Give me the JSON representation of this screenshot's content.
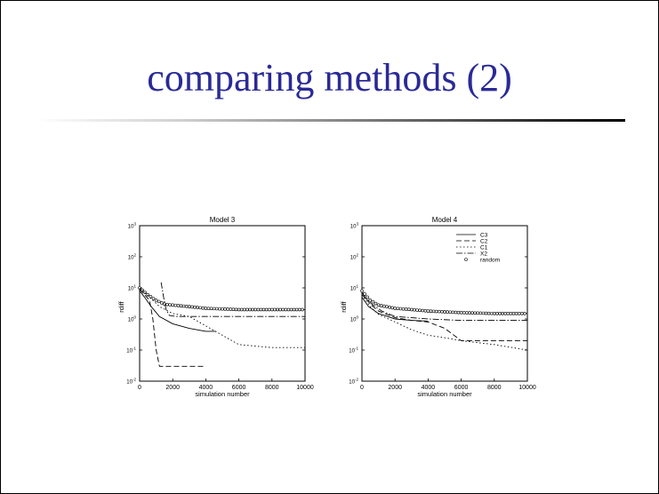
{
  "slide": {
    "title": "comparing methods (2)"
  },
  "colors": {
    "title": "#2a2a96",
    "ink": "#000000"
  },
  "chart_data": [
    {
      "type": "line",
      "title": "Model 3",
      "xlabel": "simulation number",
      "ylabel": "rdiff",
      "xlim": [
        0,
        10000
      ],
      "ylim_log10": [
        -2,
        3
      ],
      "y_scale": "log",
      "x_ticks": [
        0,
        2000,
        4000,
        6000,
        8000,
        10000
      ],
      "x_tick_labels": [
        "0",
        "2000",
        "4000",
        "6000",
        "8000",
        "10000"
      ],
      "y_tick_labels": [
        "10^-2",
        "10^-1",
        "10^0",
        "10^1",
        "10^2",
        "10^3"
      ],
      "series": [
        {
          "style": "circles",
          "x": [
            0,
            500,
            1000,
            1500,
            2000,
            3000,
            4000,
            6000,
            8000,
            10000
          ],
          "y": [
            10,
            6,
            4,
            3,
            2.8,
            2.5,
            2.2,
            2.0,
            2.0,
            2.0
          ]
        },
        {
          "style": "solid",
          "x": [
            0,
            300,
            700,
            1200,
            2000,
            3000,
            4000,
            4600
          ],
          "y": [
            8,
            5,
            2.5,
            1.2,
            0.7,
            0.5,
            0.4,
            0.4
          ]
        },
        {
          "style": "dashed",
          "x": [
            0,
            300,
            600,
            800,
            1000,
            1200,
            2000,
            3000,
            4000
          ],
          "y": [
            9,
            6,
            4,
            1.0,
            0.1,
            0.03,
            0.03,
            0.03,
            0.03
          ]
        },
        {
          "style": "dashdot",
          "x": [
            1300,
            1450,
            1600,
            1800,
            2200,
            4000,
            6000,
            8000,
            10000
          ],
          "y": [
            15,
            5,
            2,
            1.3,
            1.2,
            1.2,
            1.2,
            1.2,
            1.2
          ]
        },
        {
          "style": "dotted",
          "x": [
            0,
            600,
            1200,
            2000,
            3000,
            4000,
            6000,
            8000,
            10000
          ],
          "y": [
            10,
            5,
            2.5,
            1.5,
            1.2,
            0.6,
            0.15,
            0.12,
            0.12
          ]
        }
      ]
    },
    {
      "type": "line",
      "title": "Model 4",
      "xlabel": "simulation number",
      "ylabel": "rdiff",
      "xlim": [
        0,
        10000
      ],
      "ylim_log10": [
        -2,
        3
      ],
      "y_scale": "log",
      "x_ticks": [
        0,
        2000,
        4000,
        6000,
        8000,
        10000
      ],
      "x_tick_labels": [
        "0",
        "2000",
        "4000",
        "6000",
        "8000",
        "10000"
      ],
      "y_tick_labels": [
        "10^-2",
        "10^-1",
        "10^0",
        "10^1",
        "10^2",
        "10^3"
      ],
      "legend": {
        "placement": "top-right",
        "entries": [
          "C3",
          "C2",
          "C1",
          "X2",
          "random"
        ]
      },
      "series": [
        {
          "style": "circles",
          "x": [
            0,
            500,
            1000,
            2000,
            3000,
            4000,
            6000,
            8000,
            10000
          ],
          "y": [
            8,
            4,
            2.8,
            2.2,
            2.0,
            1.8,
            1.6,
            1.5,
            1.5
          ]
        },
        {
          "style": "dashed",
          "x": [
            0,
            500,
            1000,
            2000,
            3000,
            4000,
            5000,
            6000,
            10000
          ],
          "y": [
            7,
            3,
            1.8,
            1.1,
            0.9,
            0.8,
            0.5,
            0.2,
            0.2
          ]
        },
        {
          "style": "dotted",
          "x": [
            0,
            500,
            1000,
            2000,
            3000,
            4000,
            5000,
            6000,
            8000,
            10000
          ],
          "y": [
            6,
            2.5,
            1.4,
            0.8,
            0.45,
            0.3,
            0.25,
            0.2,
            0.15,
            0.1
          ]
        },
        {
          "style": "dashdot",
          "x": [
            0,
            600,
            1200,
            2000,
            3000,
            4000,
            6000,
            8000,
            10000
          ],
          "y": [
            6,
            3,
            1.8,
            1.2,
            1.1,
            1.0,
            0.9,
            0.9,
            0.9
          ]
        },
        {
          "style": "solid",
          "x": [
            0,
            400,
            1000,
            2000,
            3000,
            4000
          ],
          "y": [
            5,
            2.5,
            1.5,
            1.0,
            0.9,
            0.85
          ]
        }
      ]
    }
  ]
}
